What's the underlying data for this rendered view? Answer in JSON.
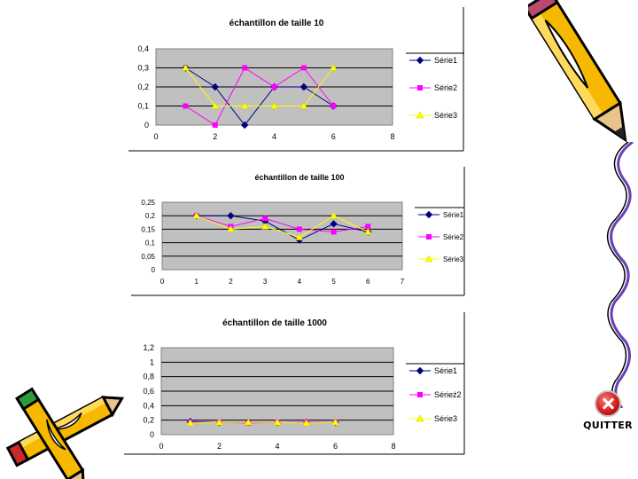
{
  "quit_button": {
    "label": "QUITTER",
    "icon": "close-icon"
  },
  "chart_data": [
    {
      "type": "line",
      "title": "échantillon de taille 10",
      "xlabel": "",
      "ylabel": "",
      "xlim": [
        0,
        8
      ],
      "ylim": [
        0,
        0.4
      ],
      "xticks": [
        "0",
        "2",
        "4",
        "6",
        "8"
      ],
      "yticks": [
        "0",
        "0,1",
        "0,2",
        "0,3",
        "0,4"
      ],
      "grid": true,
      "legend": "right",
      "x": [
        1,
        2,
        3,
        4,
        5,
        6
      ],
      "series": [
        {
          "name": "Série1",
          "color": "#000080",
          "marker": "diamond",
          "values": [
            0.3,
            0.2,
            0.0,
            0.2,
            0.2,
            0.1
          ]
        },
        {
          "name": "Série2",
          "color": "#ff00ff",
          "marker": "square",
          "values": [
            0.1,
            0.0,
            0.3,
            0.2,
            0.3,
            0.1
          ]
        },
        {
          "name": "Série3",
          "color": "#ffff00",
          "marker": "triangle",
          "values": [
            0.3,
            0.1,
            0.1,
            0.1,
            0.1,
            0.3
          ]
        }
      ]
    },
    {
      "type": "line",
      "title": "échantillon de taille 100",
      "xlabel": "",
      "ylabel": "",
      "xlim": [
        0,
        7
      ],
      "ylim": [
        0,
        0.25
      ],
      "xticks": [
        "0",
        "1",
        "2",
        "3",
        "4",
        "5",
        "6",
        "7"
      ],
      "yticks": [
        "0",
        "0,05",
        "0,1",
        "0,15",
        "0,2",
        "0,25"
      ],
      "grid": true,
      "legend": "right",
      "x": [
        1,
        2,
        3,
        4,
        5,
        6
      ],
      "series": [
        {
          "name": "Série1",
          "color": "#000080",
          "marker": "diamond",
          "values": [
            0.2,
            0.2,
            0.18,
            0.11,
            0.17,
            0.14
          ]
        },
        {
          "name": "Série2",
          "color": "#ff00ff",
          "marker": "square",
          "values": [
            0.2,
            0.16,
            0.19,
            0.15,
            0.14,
            0.16
          ]
        },
        {
          "name": "Série3",
          "color": "#ffff00",
          "marker": "triangle",
          "values": [
            0.2,
            0.15,
            0.16,
            0.12,
            0.2,
            0.14
          ]
        }
      ]
    },
    {
      "type": "line",
      "title": "échantillon de taille 1000",
      "xlabel": "",
      "ylabel": "",
      "xlim": [
        0,
        8
      ],
      "ylim": [
        0,
        1.2
      ],
      "xticks": [
        "0",
        "2",
        "4",
        "6",
        "8"
      ],
      "yticks": [
        "0",
        "0,2",
        "0,4",
        "0,6",
        "0,8",
        "1",
        "1,2"
      ],
      "grid": true,
      "legend": "right",
      "x": [
        1,
        2,
        3,
        4,
        5,
        6
      ],
      "series": [
        {
          "name": "Série1",
          "color": "#000080",
          "marker": "diamond",
          "values": [
            0.18,
            0.17,
            0.17,
            0.17,
            0.17,
            0.17
          ]
        },
        {
          "name": "Sérieź2",
          "color": "#ff00ff",
          "marker": "square",
          "values": [
            0.17,
            0.17,
            0.16,
            0.17,
            0.17,
            0.17
          ]
        },
        {
          "name": "Série3",
          "color": "#ffff00",
          "marker": "triangle",
          "values": [
            0.16,
            0.17,
            0.17,
            0.17,
            0.16,
            0.17
          ]
        }
      ]
    }
  ]
}
